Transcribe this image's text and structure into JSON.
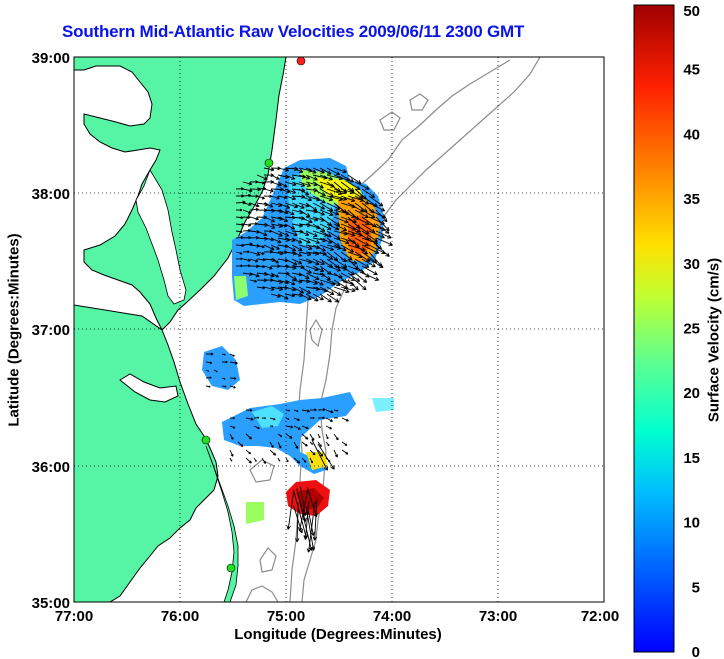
{
  "title": "Southern Mid-Atlantic Raw Velocities 2009/06/11 2300 GMT",
  "xlabel": "Longitude (Degrees:Minutes)",
  "ylabel": "Latitude (Degrees:Minutes)",
  "x_ticks": [
    "77:00",
    "76:00",
    "75:00",
    "74:00",
    "73:00",
    "72:00"
  ],
  "y_ticks": [
    "39:00",
    "38:00",
    "37:00",
    "36:00",
    "35:00"
  ],
  "colorbar": {
    "label": "Surface Velocity (cm/s)",
    "ticks": [
      "0",
      "5",
      "10",
      "15",
      "20",
      "25",
      "30",
      "35",
      "40",
      "45",
      "50"
    ],
    "range": [
      0,
      50
    ]
  },
  "colors": {
    "land": "#55f5a5",
    "coast": "#000000",
    "bathymetry": "#8c8c8c",
    "title": "#0a14e6",
    "station": "#22dd22",
    "station_alt": "#ff2020"
  },
  "map": {
    "lon_range": [
      -77,
      -72
    ],
    "lat_range": [
      35,
      39
    ],
    "grid": "dotted"
  }
}
